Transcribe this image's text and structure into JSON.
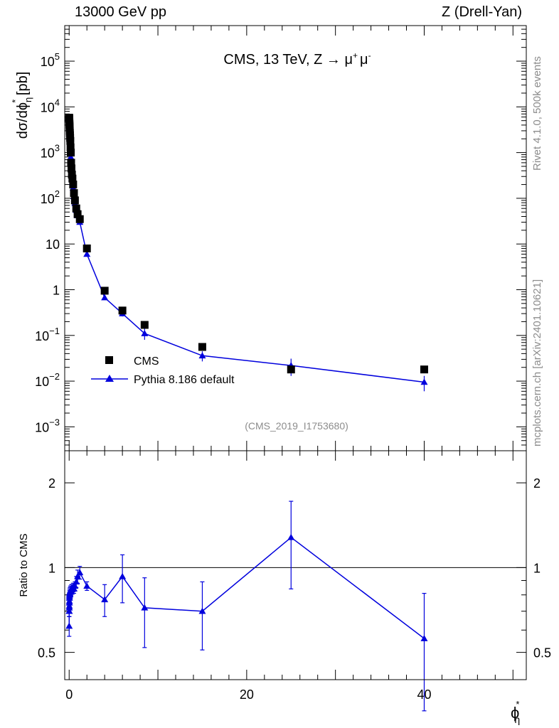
{
  "header": {
    "left": "13000 GeV pp",
    "right": "Z (Drell-Yan)"
  },
  "side_labels": {
    "top": "Rivet 4.1.0,  500k events",
    "bottom": "mcplots.cern.ch [arXiv:2401.10621]"
  },
  "watermark": "(CMS_2019_I1753680)",
  "colors": {
    "mc": "#0000dd",
    "data": "#000000",
    "watermark": "#8c8c8c"
  },
  "chart_data": [
    {
      "type": "scatter",
      "panel": "main",
      "title_parts": {
        "base": "CMS, 13 TeV, Z → ",
        "mu": "μ",
        "plus": "+",
        "minus": "-"
      },
      "ylabel_parts": {
        "a": "dσ/dϕ",
        "sub": "η",
        "sup": "*",
        "b": " [pb]"
      },
      "y_scale": "log",
      "ylim": [
        0.0003,
        600000
      ],
      "xlim": [
        -0.5,
        51.5
      ],
      "y_ticks": [
        {
          "v": 0.001,
          "base": "10",
          "exp": "−3"
        },
        {
          "v": 0.01,
          "base": "10",
          "exp": "−2"
        },
        {
          "v": 0.1,
          "base": "10",
          "exp": "−1"
        },
        {
          "v": 1,
          "base": "1",
          "exp": ""
        },
        {
          "v": 10,
          "base": "10",
          "exp": ""
        },
        {
          "v": 100,
          "base": "10",
          "exp": "2"
        },
        {
          "v": 1000,
          "base": "10",
          "exp": "3"
        },
        {
          "v": 10000,
          "base": "10",
          "exp": "4"
        },
        {
          "v": 100000,
          "base": "10",
          "exp": "5"
        }
      ],
      "legend": {
        "position": "middle-left",
        "entries": [
          "CMS",
          "Pythia 8.186 default"
        ]
      },
      "series": [
        {
          "name": "CMS",
          "marker": "square",
          "x": [
            0.002,
            0.006,
            0.01,
            0.014,
            0.018,
            0.023,
            0.028,
            0.034,
            0.041,
            0.049,
            0.058,
            0.068,
            0.08,
            0.094,
            0.11,
            0.13,
            0.155,
            0.185,
            0.22,
            0.26,
            0.31,
            0.37,
            0.45,
            0.54,
            0.65,
            0.8,
            0.95,
            1.2,
            2,
            4,
            6,
            8.5,
            15,
            25,
            40
          ],
          "y": [
            5800,
            5600,
            5400,
            5200,
            5000,
            4800,
            4500,
            4200,
            3900,
            3600,
            3300,
            3000,
            2700,
            2400,
            2100,
            1800,
            1300,
            1000,
            600,
            450,
            330,
            270,
            200,
            130,
            90,
            60,
            45,
            35,
            8,
            0.95,
            0.35,
            0.17,
            0.056,
            0.018,
            0.018
          ]
        },
        {
          "name": "Pythia 8.186 default",
          "marker": "triangle",
          "x": [
            0.002,
            0.006,
            0.01,
            0.014,
            0.018,
            0.023,
            0.028,
            0.034,
            0.041,
            0.049,
            0.058,
            0.068,
            0.08,
            0.094,
            0.11,
            0.13,
            0.155,
            0.185,
            0.22,
            0.26,
            0.31,
            0.37,
            0.45,
            0.54,
            0.65,
            0.8,
            0.95,
            1.2,
            2,
            4,
            6,
            8.5,
            15,
            25,
            40
          ],
          "y": [
            3700,
            3550,
            3400,
            3250,
            3100,
            2950,
            2800,
            2650,
            2500,
            2350,
            2200,
            2050,
            1900,
            1750,
            1600,
            1450,
            950,
            800,
            480,
            360,
            270,
            225,
            170,
            110,
            78,
            55,
            42,
            30,
            6,
            0.67,
            0.3,
            0.11,
            0.036,
            0.022,
            0.0095
          ],
          "yerr": [
            0,
            0,
            0,
            0,
            0,
            0,
            0,
            0,
            0,
            0,
            0,
            0,
            0,
            0,
            0,
            0,
            0,
            0,
            0,
            0,
            0,
            0,
            0,
            0,
            0,
            0,
            0,
            0,
            0,
            0.05,
            0.04,
            0.03,
            0.009,
            0.009,
            0.0035
          ]
        }
      ]
    },
    {
      "type": "line",
      "panel": "ratio",
      "ylabel": "Ratio to CMS",
      "xlabel_parts": {
        "a": "ϕ",
        "sup": "*",
        "sub": "η"
      },
      "y_scale": "log",
      "ylim": [
        0.4,
        2.6
      ],
      "xlim": [
        -0.5,
        51.5
      ],
      "x_ticks": [
        0,
        20,
        40
      ],
      "y_ticks": [
        0.5,
        1,
        2
      ],
      "reference_line": 1,
      "series": [
        {
          "name": "Pythia 8.186 default",
          "x": [
            0.002,
            0.006,
            0.01,
            0.014,
            0.018,
            0.023,
            0.028,
            0.034,
            0.041,
            0.049,
            0.058,
            0.068,
            0.08,
            0.094,
            0.11,
            0.13,
            0.155,
            0.185,
            0.22,
            0.26,
            0.31,
            0.37,
            0.45,
            0.54,
            0.65,
            0.8,
            0.95,
            1.2,
            2,
            4,
            6,
            8.5,
            15,
            25,
            40
          ],
          "y": [
            0.62,
            0.7,
            0.7,
            0.72,
            0.73,
            0.75,
            0.76,
            0.78,
            0.79,
            0.8,
            0.8,
            0.81,
            0.81,
            0.82,
            0.82,
            0.82,
            0.83,
            0.83,
            0.82,
            0.84,
            0.84,
            0.84,
            0.85,
            0.84,
            0.86,
            0.89,
            0.93,
            0.96,
            0.86,
            0.77,
            0.93,
            0.72,
            0.7,
            1.28,
            0.56
          ],
          "yerr": [
            0.05,
            0.03,
            0.03,
            0.03,
            0.03,
            0.03,
            0.03,
            0.03,
            0.03,
            0.03,
            0.03,
            0.03,
            0.03,
            0.03,
            0.03,
            0.03,
            0.03,
            0.03,
            0.03,
            0.03,
            0.03,
            0.03,
            0.03,
            0.03,
            0.03,
            0.04,
            0.05,
            0.05,
            0.03,
            0.1,
            0.18,
            0.2,
            0.19,
            0.44,
            0.25
          ]
        }
      ]
    }
  ]
}
